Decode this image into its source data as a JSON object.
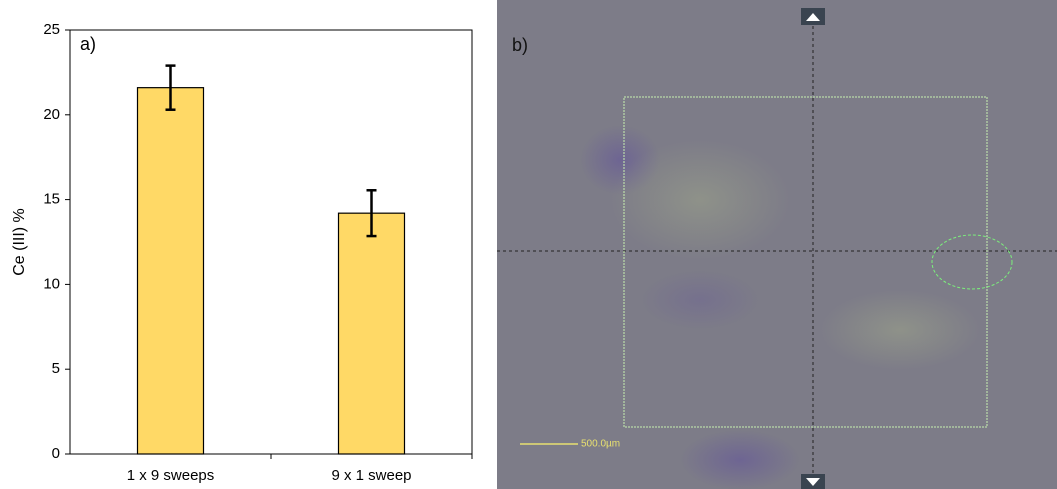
{
  "chart_data": {
    "type": "bar",
    "annotation": "a)",
    "y_label": "Ce (III) %",
    "categories": [
      "1 x 9 sweeps",
      "9 x 1 sweep"
    ],
    "values": [
      21.6,
      14.2
    ],
    "errors": [
      1.3,
      1.35
    ],
    "color": "#ffd966",
    "ylim": [
      0,
      25
    ],
    "yticks": [
      0,
      5,
      10,
      15,
      20,
      25
    ],
    "grid": false
  },
  "image_panel": {
    "label": "b)",
    "scale_bar": "500.0µm"
  }
}
